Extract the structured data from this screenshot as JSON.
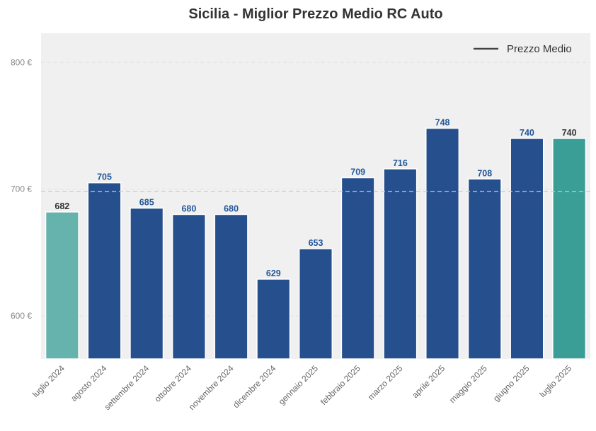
{
  "chart_data": {
    "type": "bar",
    "title": "Sicilia - Miglior Prezzo Medio RC Auto",
    "xlabel": "",
    "ylabel": "",
    "categories": [
      "luglio 2024",
      "agosto 2024",
      "settembre 2024",
      "ottobre 2024",
      "novembre 2024",
      "dicembre 2024",
      "gennaio 2025",
      "febbraio 2025",
      "marzo 2025",
      "aprile 2025",
      "maggio 2025",
      "giugno 2025",
      "luglio 2025"
    ],
    "values": [
      682,
      705,
      685,
      680,
      680,
      629,
      653,
      709,
      716,
      748,
      708,
      740,
      740
    ],
    "data_labels": [
      "682",
      "705",
      "685",
      "680",
      "680",
      "629",
      "653",
      "709",
      "716",
      "748",
      "708",
      "740",
      "740"
    ],
    "ylim": [
      566,
      823
    ],
    "yticks": [
      600,
      700,
      800
    ],
    "ytick_labels": [
      "600 €",
      "700 €",
      "800 €"
    ],
    "reference_line": {
      "value": 698,
      "style": "dashed"
    },
    "legend": {
      "position": "top-right",
      "entries": [
        {
          "label": "Prezzo Medio",
          "marker": "line"
        }
      ]
    },
    "grid": true,
    "colors": {
      "background": "#f0f0f0",
      "bar_default": "#264f8d",
      "bar_first": "#66b2ad",
      "bar_last": "#3a9e96",
      "label_default": "#23579c",
      "label_highlight": "#333333",
      "legend_line": "#444444"
    }
  }
}
